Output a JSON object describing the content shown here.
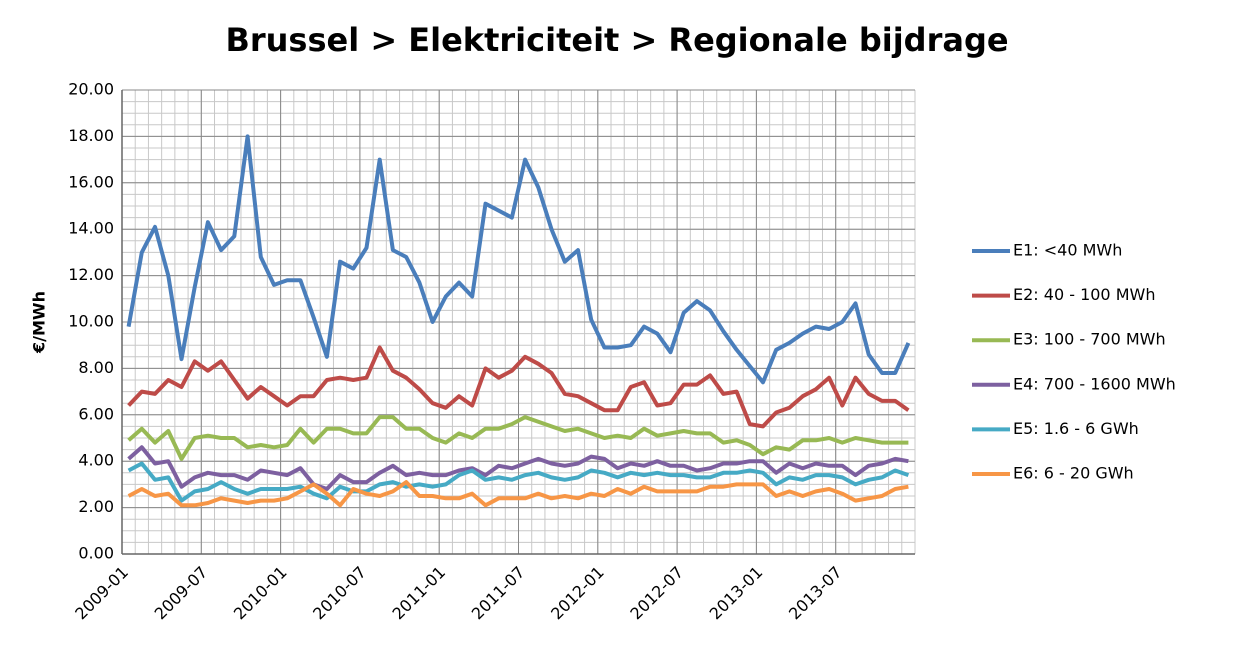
{
  "chart_data": {
    "type": "line",
    "title": "Brussel > Elektriciteit > Regionale bijdrage",
    "y_label": "€/MWh",
    "categories": [
      "2009-01",
      null,
      null,
      null,
      null,
      null,
      "2009-07",
      null,
      null,
      null,
      null,
      null,
      "2010-01",
      null,
      null,
      null,
      null,
      null,
      "2010-07",
      null,
      null,
      null,
      null,
      null,
      "2011-01",
      null,
      null,
      null,
      null,
      null,
      "2011-07",
      null,
      null,
      null,
      null,
      null,
      "2012-01",
      null,
      null,
      null,
      null,
      null,
      "2012-07",
      null,
      null,
      null,
      null,
      null,
      "2013-01",
      null,
      null,
      null,
      null,
      null,
      "2013-07",
      null,
      null,
      null,
      null,
      null
    ],
    "series": [
      {
        "name": "E1: <40 MWh",
        "color": "#4a7ebb",
        "values": [
          9.8,
          13.0,
          14.1,
          12.0,
          8.4,
          11.5,
          14.3,
          13.1,
          13.7,
          18.0,
          12.8,
          11.6,
          11.8,
          11.8,
          10.2,
          8.5,
          12.6,
          12.3,
          13.2,
          17.0,
          13.1,
          12.8,
          11.7,
          10.0,
          11.1,
          11.7,
          11.1,
          15.1,
          14.8,
          14.5,
          17.0,
          15.8,
          14.0,
          12.6,
          13.1,
          10.1,
          8.9,
          8.9,
          9.0,
          9.8,
          9.5,
          8.7,
          10.4,
          10.9,
          10.5,
          9.6,
          8.8,
          8.1,
          7.4,
          8.8,
          9.1,
          9.5,
          9.8,
          9.7,
          10.0,
          10.8,
          8.6,
          7.8,
          7.8,
          9.1
        ]
      },
      {
        "name": "E2: 40 - 100 MWh",
        "color": "#be4b48",
        "values": [
          6.4,
          7.0,
          6.9,
          7.5,
          7.2,
          8.3,
          7.9,
          8.3,
          7.5,
          6.7,
          7.2,
          6.8,
          6.4,
          6.8,
          6.8,
          7.5,
          7.6,
          7.5,
          7.6,
          8.9,
          7.9,
          7.6,
          7.1,
          6.5,
          6.3,
          6.8,
          6.4,
          8.0,
          7.6,
          7.9,
          8.5,
          8.2,
          7.8,
          6.9,
          6.8,
          6.5,
          6.2,
          6.2,
          7.2,
          7.4,
          6.4,
          6.5,
          7.3,
          7.3,
          7.7,
          6.9,
          7.0,
          5.6,
          5.5,
          6.1,
          6.3,
          6.8,
          7.1,
          7.6,
          6.4,
          7.6,
          6.9,
          6.6,
          6.6,
          6.2
        ]
      },
      {
        "name": "E3: 100 - 700 MWh",
        "color": "#98b954",
        "values": [
          4.9,
          5.4,
          4.8,
          5.3,
          4.1,
          5.0,
          5.1,
          5.0,
          5.0,
          4.6,
          4.7,
          4.6,
          4.7,
          5.4,
          4.8,
          5.4,
          5.4,
          5.2,
          5.2,
          5.9,
          5.9,
          5.4,
          5.4,
          5.0,
          4.8,
          5.2,
          5.0,
          5.4,
          5.4,
          5.6,
          5.9,
          5.7,
          5.5,
          5.3,
          5.4,
          5.2,
          5.0,
          5.1,
          5.0,
          5.4,
          5.1,
          5.2,
          5.3,
          5.2,
          5.2,
          4.8,
          4.9,
          4.7,
          4.3,
          4.6,
          4.5,
          4.9,
          4.9,
          5.0,
          4.8,
          5.0,
          4.9,
          4.8,
          4.8,
          4.8
        ]
      },
      {
        "name": "E4: 700 - 1600 MWh",
        "color": "#7d60a0",
        "values": [
          4.1,
          4.6,
          3.9,
          4.0,
          2.9,
          3.3,
          3.5,
          3.4,
          3.4,
          3.2,
          3.6,
          3.5,
          3.4,
          3.7,
          3.0,
          2.8,
          3.4,
          3.1,
          3.1,
          3.5,
          3.8,
          3.4,
          3.5,
          3.4,
          3.4,
          3.6,
          3.7,
          3.4,
          3.8,
          3.7,
          3.9,
          4.1,
          3.9,
          3.8,
          3.9,
          4.2,
          4.1,
          3.7,
          3.9,
          3.8,
          4.0,
          3.8,
          3.8,
          3.6,
          3.7,
          3.9,
          3.9,
          4.0,
          4.0,
          3.5,
          3.9,
          3.7,
          3.9,
          3.8,
          3.8,
          3.4,
          3.8,
          3.9,
          4.1,
          4.0
        ]
      },
      {
        "name": "E5: 1.6 - 6 GWh",
        "color": "#46aac5",
        "values": [
          3.6,
          3.9,
          3.2,
          3.3,
          2.3,
          2.7,
          2.8,
          3.1,
          2.8,
          2.6,
          2.8,
          2.8,
          2.8,
          2.9,
          2.6,
          2.4,
          2.9,
          2.7,
          2.7,
          3.0,
          3.1,
          2.9,
          3.0,
          2.9,
          3.0,
          3.4,
          3.6,
          3.2,
          3.3,
          3.2,
          3.4,
          3.5,
          3.3,
          3.2,
          3.3,
          3.6,
          3.5,
          3.3,
          3.5,
          3.4,
          3.5,
          3.4,
          3.4,
          3.3,
          3.3,
          3.5,
          3.5,
          3.6,
          3.5,
          3.0,
          3.3,
          3.2,
          3.4,
          3.4,
          3.3,
          3.0,
          3.2,
          3.3,
          3.6,
          3.4
        ]
      },
      {
        "name": "E6: 6 - 20 GWh",
        "color": "#f79646",
        "values": [
          2.5,
          2.8,
          2.5,
          2.6,
          2.1,
          2.1,
          2.2,
          2.4,
          2.3,
          2.2,
          2.3,
          2.3,
          2.4,
          2.7,
          3.0,
          2.6,
          2.1,
          2.8,
          2.6,
          2.5,
          2.7,
          3.1,
          2.5,
          2.5,
          2.4,
          2.4,
          2.6,
          2.1,
          2.4,
          2.4,
          2.4,
          2.6,
          2.4,
          2.5,
          2.4,
          2.6,
          2.5,
          2.8,
          2.6,
          2.9,
          2.7,
          2.7,
          2.7,
          2.7,
          2.9,
          2.9,
          3.0,
          3.0,
          3.0,
          2.5,
          2.7,
          2.5,
          2.7,
          2.8,
          2.6,
          2.3,
          2.4,
          2.5,
          2.8,
          2.9
        ]
      }
    ],
    "ylim": [
      0,
      20
    ],
    "yticks": [
      {
        "value": 0,
        "label": "0.00"
      },
      {
        "value": 2,
        "label": "2.00"
      },
      {
        "value": 4,
        "label": "4.00"
      },
      {
        "value": 6,
        "label": "6.00"
      },
      {
        "value": 8,
        "label": "8.00"
      },
      {
        "value": 10,
        "label": "10.00"
      },
      {
        "value": 12,
        "label": "12.00"
      },
      {
        "value": 14,
        "label": "14.00"
      },
      {
        "value": 16,
        "label": "16.00"
      },
      {
        "value": 18,
        "label": "18.00"
      },
      {
        "value": 20,
        "label": "20.00"
      }
    ],
    "grid": true,
    "legend": "right"
  }
}
